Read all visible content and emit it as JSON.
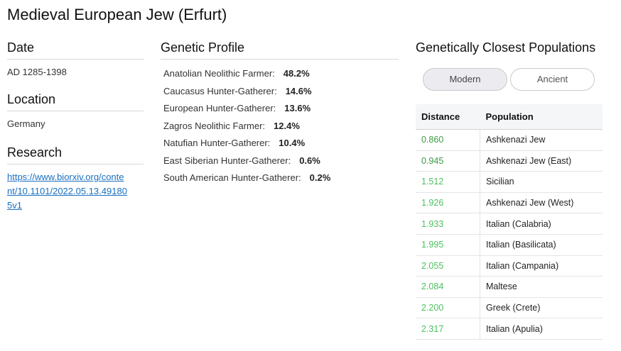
{
  "title": "Medieval European Jew (Erfurt)",
  "date": {
    "heading": "Date",
    "value": "AD 1285-1398"
  },
  "location": {
    "heading": "Location",
    "value": "Germany"
  },
  "research": {
    "heading": "Research",
    "link_lines": [
      "https://www.biorxiv.org/conte",
      "nt/10.1101/2022.05.13.49180",
      "5v1"
    ]
  },
  "genetic_profile": {
    "heading": "Genetic Profile",
    "items": [
      {
        "name": "Anatolian Neolithic Farmer:",
        "pct": "48.2%"
      },
      {
        "name": "Caucasus Hunter-Gatherer:",
        "pct": "14.6%"
      },
      {
        "name": "European Hunter-Gatherer:",
        "pct": "13.6%"
      },
      {
        "name": "Zagros Neolithic Farmer:",
        "pct": "12.4%"
      },
      {
        "name": "Natufian Hunter-Gatherer:",
        "pct": "10.4%"
      },
      {
        "name": "East Siberian Hunter-Gatherer:",
        "pct": "0.6%"
      },
      {
        "name": "South American Hunter-Gatherer:",
        "pct": "0.2%"
      }
    ]
  },
  "closest": {
    "heading": "Genetically Closest Populations",
    "tabs": [
      {
        "label": "Modern",
        "active": true
      },
      {
        "label": "Ancient",
        "active": false
      }
    ],
    "columns": [
      "Distance",
      "Population"
    ],
    "rows": [
      {
        "distance": "0.860",
        "population": "Ashkenazi Jew",
        "color": "#3a9a45"
      },
      {
        "distance": "0.945",
        "population": "Ashkenazi Jew (East)",
        "color": "#3a9a45"
      },
      {
        "distance": "1.512",
        "population": "Sicilian",
        "color": "#4cc060"
      },
      {
        "distance": "1.926",
        "population": "Ashkenazi Jew (West)",
        "color": "#4cc060"
      },
      {
        "distance": "1.933",
        "population": "Italian (Calabria)",
        "color": "#4cc060"
      },
      {
        "distance": "1.995",
        "population": "Italian (Basilicata)",
        "color": "#4cc060"
      },
      {
        "distance": "2.055",
        "population": "Italian (Campania)",
        "color": "#4cc060"
      },
      {
        "distance": "2.084",
        "population": "Maltese",
        "color": "#4cc060"
      },
      {
        "distance": "2.200",
        "population": "Greek (Crete)",
        "color": "#4cc060"
      },
      {
        "distance": "2.317",
        "population": "Italian (Apulia)",
        "color": "#4cc060"
      }
    ]
  }
}
